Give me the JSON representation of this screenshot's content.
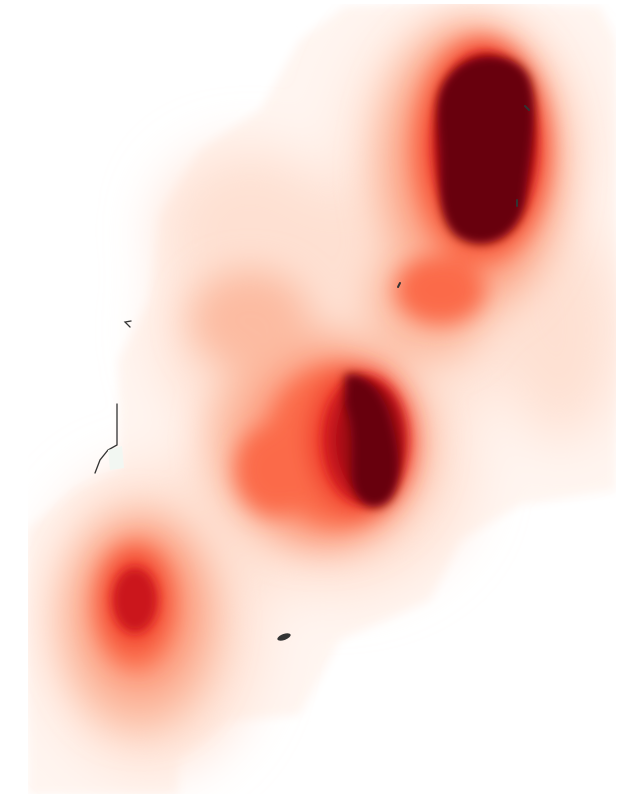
{
  "map": {
    "type": "kernel-density-heatmap",
    "colormap": "reds",
    "colors": {
      "background": "#ffffff",
      "level_0": "#fff5f0",
      "level_1": "#fee0d2",
      "level_2": "#fcbba1",
      "level_3": "#fc9272",
      "level_4": "#fb6a4a",
      "level_5": "#ef3b2c",
      "level_6": "#cb181d",
      "level_7": "#a50f15",
      "level_8": "#67000d",
      "outline": "#333333",
      "land_fill": "#f2f7f2"
    },
    "hotspots": [
      {
        "name": "northeast-peak",
        "intensity": 1.0
      },
      {
        "name": "central-peak",
        "intensity": 0.95
      },
      {
        "name": "central-west-lobe",
        "intensity": 0.72
      },
      {
        "name": "east-neck",
        "intensity": 0.6
      },
      {
        "name": "southwest-peak",
        "intensity": 0.78
      }
    ]
  }
}
